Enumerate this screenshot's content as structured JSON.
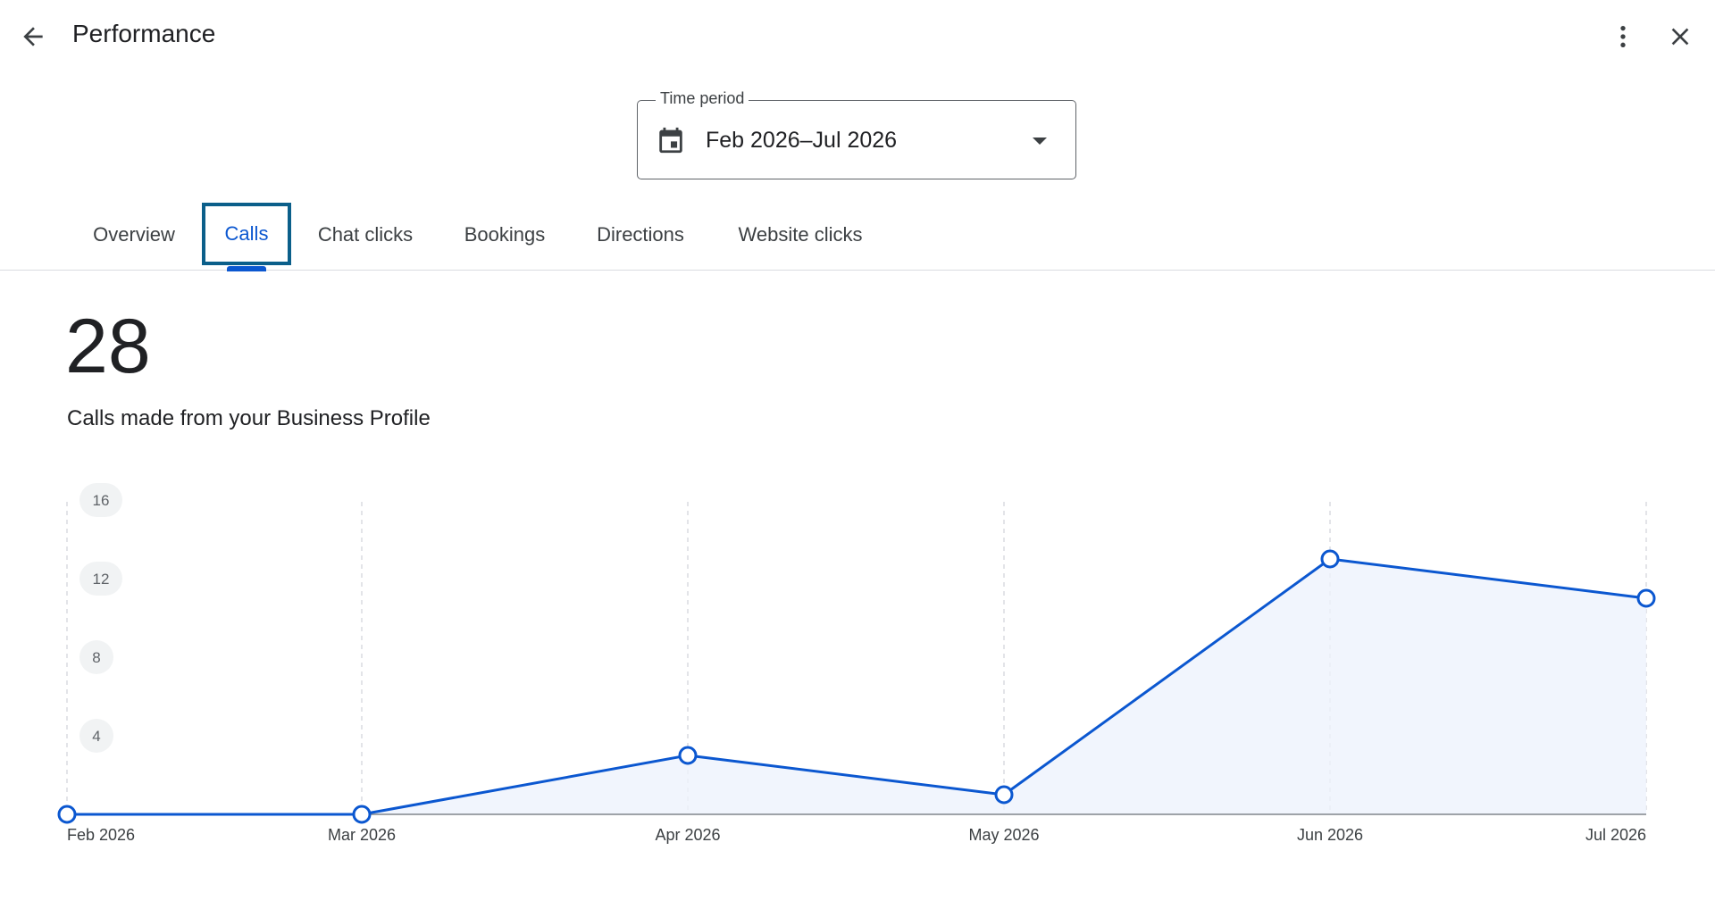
{
  "header": {
    "title": "Performance",
    "back_icon": "arrow-back-icon",
    "more_icon": "more-vert-icon",
    "close_icon": "close-icon"
  },
  "time_period": {
    "label": "Time period",
    "value": "Feb 2026–Jul 2026",
    "icon": "calendar-icon",
    "caret_icon": "dropdown-caret-icon"
  },
  "tabs": [
    {
      "label": "Overview",
      "active": false
    },
    {
      "label": "Calls",
      "active": true
    },
    {
      "label": "Chat clicks",
      "active": false
    },
    {
      "label": "Bookings",
      "active": false
    },
    {
      "label": "Directions",
      "active": false
    },
    {
      "label": "Website clicks",
      "active": false
    }
  ],
  "summary": {
    "total": "28",
    "description": "Calls made from your Business Profile"
  },
  "colors": {
    "accent": "#0b57d0",
    "area_fill": "#eef3fc",
    "focus_outline": "#0b5f8a"
  },
  "chart_data": {
    "type": "area",
    "categories": [
      "Feb 2026",
      "Mar 2026",
      "Apr 2026",
      "May 2026",
      "Jun 2026",
      "Jul 2026"
    ],
    "values": [
      0,
      0,
      3,
      1,
      13,
      11
    ],
    "yticks": [
      "16",
      "12",
      "8",
      "4"
    ],
    "ylim": [
      0,
      16
    ],
    "grid": "vertical dashed"
  }
}
